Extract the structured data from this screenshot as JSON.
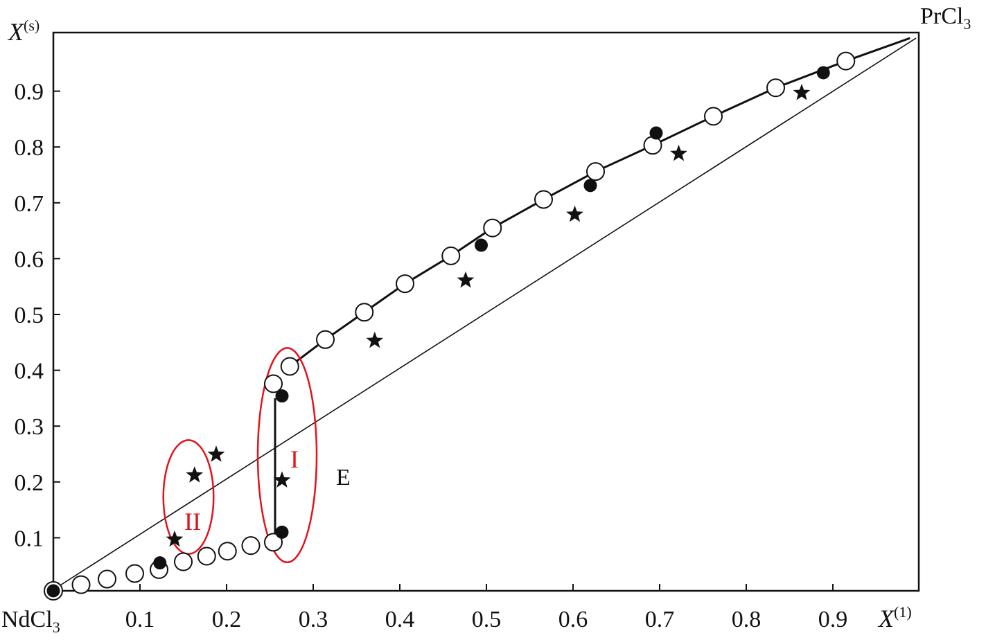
{
  "chart_data": {
    "type": "scatter",
    "title": "",
    "xlabel": "X",
    "xlabel_sup": "(1)",
    "ylabel": "X",
    "ylabel_sup": "(s)",
    "xlim": [
      0,
      1
    ],
    "ylim": [
      0,
      1
    ],
    "grid": false,
    "x_ticks": [
      0.1,
      0.2,
      0.3,
      0.4,
      0.5,
      0.6,
      0.7,
      0.8,
      0.9
    ],
    "x_tick_labels": [
      "0.1",
      "0.2",
      "0.3",
      "0.4",
      "0.5",
      "0.6",
      "0.7",
      "0.8",
      "0.9"
    ],
    "y_ticks": [
      0.1,
      0.2,
      0.3,
      0.4,
      0.5,
      0.6,
      0.7,
      0.8,
      0.9
    ],
    "y_tick_labels": [
      "0.1",
      "0.2",
      "0.3",
      "0.4",
      "0.5",
      "0.6",
      "0.7",
      "0.8",
      "0.9"
    ],
    "component_left": {
      "name": "NdCl",
      "sub": "3"
    },
    "component_right": {
      "name": "PrCl",
      "sub": "3"
    },
    "annotations": {
      "region_I": "I",
      "region_II": "II",
      "eutectic": "E"
    },
    "colors": {
      "ink": "#111111",
      "highlight": "#e3121b"
    },
    "series": [
      {
        "name": "open-circles",
        "marker": "open-circle",
        "x": [
          0.032,
          0.062,
          0.094,
          0.122,
          0.15,
          0.177,
          0.201,
          0.228,
          0.254,
          0.254,
          0.273,
          0.314,
          0.359,
          0.406,
          0.459,
          0.507,
          0.566,
          0.626,
          0.692,
          0.762,
          0.834,
          0.915
        ],
        "y": [
          0.016,
          0.026,
          0.036,
          0.043,
          0.057,
          0.067,
          0.076,
          0.086,
          0.092,
          0.376,
          0.407,
          0.455,
          0.504,
          0.555,
          0.605,
          0.655,
          0.706,
          0.756,
          0.803,
          0.855,
          0.906,
          0.954
        ]
      },
      {
        "name": "filled-circles",
        "marker": "filled-circle",
        "x": [
          0.0,
          0.123,
          0.264,
          0.264,
          0.494,
          0.62,
          0.696,
          0.889
        ],
        "y": [
          0.005,
          0.055,
          0.354,
          0.11,
          0.624,
          0.731,
          0.825,
          0.933
        ]
      },
      {
        "name": "stars",
        "marker": "star",
        "x": [
          0.14,
          0.163,
          0.188,
          0.264,
          0.371,
          0.476,
          0.602,
          0.722,
          0.864
        ],
        "y": [
          0.097,
          0.212,
          0.249,
          0.203,
          0.453,
          0.561,
          0.679,
          0.788,
          0.897
        ]
      }
    ],
    "lines": [
      {
        "name": "solidus-curve",
        "x": [
          0.273,
          0.314,
          0.359,
          0.406,
          0.459,
          0.507,
          0.566,
          0.626,
          0.692,
          0.762,
          0.834,
          0.915,
          0.989
        ],
        "y": [
          0.407,
          0.455,
          0.504,
          0.555,
          0.605,
          0.655,
          0.706,
          0.756,
          0.803,
          0.855,
          0.906,
          0.954,
          0.995
        ]
      },
      {
        "name": "vertical-segment",
        "x": [
          0.256,
          0.256
        ],
        "y": [
          0.108,
          0.35
        ]
      },
      {
        "name": "diagonal",
        "x": [
          0.002,
          0.996
        ],
        "y": [
          0.009,
          0.995
        ]
      }
    ],
    "regions": [
      {
        "name": "region-I",
        "cx": 0.27,
        "cy": 0.248,
        "rx": 0.034,
        "ry": 0.192
      },
      {
        "name": "region-II",
        "cx": 0.156,
        "cy": 0.173,
        "rx": 0.029,
        "ry": 0.102
      }
    ]
  }
}
